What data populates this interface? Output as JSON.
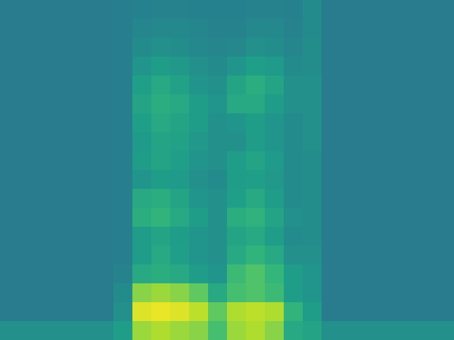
{
  "chart_data": {
    "type": "heatmap",
    "tick_labels": false,
    "cells": [
      [
        0.42,
        0.42,
        0.42,
        0.42,
        0.42,
        0.42,
        0.43,
        0.44,
        0.45,
        0.45,
        0.44,
        0.44,
        0.44,
        0.45,
        0.45,
        0.44,
        0.48,
        0.42,
        0.42,
        0.42,
        0.42,
        0.42,
        0.42,
        0.42
      ],
      [
        0.42,
        0.42,
        0.42,
        0.42,
        0.42,
        0.42,
        0.43,
        0.46,
        0.47,
        0.47,
        0.46,
        0.45,
        0.45,
        0.47,
        0.47,
        0.45,
        0.48,
        0.42,
        0.42,
        0.42,
        0.42,
        0.42,
        0.42,
        0.42
      ],
      [
        0.42,
        0.42,
        0.42,
        0.42,
        0.42,
        0.42,
        0.43,
        0.48,
        0.5,
        0.49,
        0.47,
        0.46,
        0.47,
        0.5,
        0.49,
        0.46,
        0.49,
        0.42,
        0.42,
        0.42,
        0.42,
        0.42,
        0.42,
        0.42
      ],
      [
        0.42,
        0.42,
        0.42,
        0.42,
        0.42,
        0.42,
        0.43,
        0.52,
        0.55,
        0.53,
        0.5,
        0.48,
        0.52,
        0.56,
        0.54,
        0.48,
        0.49,
        0.42,
        0.42,
        0.42,
        0.42,
        0.42,
        0.42,
        0.42
      ],
      [
        0.42,
        0.42,
        0.42,
        0.42,
        0.42,
        0.42,
        0.43,
        0.56,
        0.6,
        0.57,
        0.52,
        0.5,
        0.58,
        0.62,
        0.58,
        0.5,
        0.5,
        0.42,
        0.42,
        0.42,
        0.42,
        0.42,
        0.42,
        0.42
      ],
      [
        0.42,
        0.42,
        0.42,
        0.42,
        0.42,
        0.42,
        0.43,
        0.58,
        0.62,
        0.6,
        0.55,
        0.52,
        0.6,
        0.6,
        0.55,
        0.5,
        0.5,
        0.42,
        0.42,
        0.42,
        0.42,
        0.42,
        0.42,
        0.42
      ],
      [
        0.42,
        0.42,
        0.42,
        0.42,
        0.42,
        0.42,
        0.43,
        0.56,
        0.6,
        0.58,
        0.55,
        0.5,
        0.52,
        0.55,
        0.52,
        0.48,
        0.5,
        0.42,
        0.42,
        0.42,
        0.42,
        0.42,
        0.42,
        0.42
      ],
      [
        0.42,
        0.42,
        0.42,
        0.42,
        0.42,
        0.42,
        0.43,
        0.54,
        0.58,
        0.57,
        0.53,
        0.5,
        0.5,
        0.55,
        0.52,
        0.48,
        0.5,
        0.42,
        0.42,
        0.42,
        0.42,
        0.42,
        0.42,
        0.42
      ],
      [
        0.42,
        0.42,
        0.42,
        0.42,
        0.42,
        0.42,
        0.43,
        0.55,
        0.58,
        0.56,
        0.52,
        0.5,
        0.55,
        0.58,
        0.54,
        0.48,
        0.49,
        0.42,
        0.42,
        0.42,
        0.42,
        0.42,
        0.42,
        0.42
      ],
      [
        0.42,
        0.42,
        0.42,
        0.42,
        0.42,
        0.42,
        0.43,
        0.52,
        0.55,
        0.54,
        0.5,
        0.48,
        0.55,
        0.56,
        0.53,
        0.48,
        0.49,
        0.42,
        0.42,
        0.42,
        0.42,
        0.42,
        0.42,
        0.42
      ],
      [
        0.42,
        0.42,
        0.42,
        0.42,
        0.42,
        0.42,
        0.43,
        0.6,
        0.62,
        0.58,
        0.52,
        0.5,
        0.56,
        0.6,
        0.55,
        0.48,
        0.49,
        0.42,
        0.42,
        0.42,
        0.42,
        0.42,
        0.42,
        0.42
      ],
      [
        0.42,
        0.42,
        0.42,
        0.42,
        0.42,
        0.42,
        0.43,
        0.62,
        0.65,
        0.6,
        0.55,
        0.5,
        0.62,
        0.64,
        0.58,
        0.5,
        0.49,
        0.42,
        0.42,
        0.42,
        0.42,
        0.42,
        0.42,
        0.42
      ],
      [
        0.42,
        0.42,
        0.42,
        0.42,
        0.42,
        0.42,
        0.43,
        0.55,
        0.58,
        0.55,
        0.52,
        0.5,
        0.58,
        0.6,
        0.55,
        0.48,
        0.49,
        0.42,
        0.42,
        0.42,
        0.42,
        0.42,
        0.42,
        0.42
      ],
      [
        0.42,
        0.42,
        0.42,
        0.42,
        0.42,
        0.42,
        0.43,
        0.55,
        0.6,
        0.56,
        0.52,
        0.5,
        0.6,
        0.65,
        0.6,
        0.5,
        0.5,
        0.42,
        0.42,
        0.42,
        0.42,
        0.42,
        0.42,
        0.42
      ],
      [
        0.42,
        0.42,
        0.42,
        0.42,
        0.42,
        0.42,
        0.45,
        0.6,
        0.62,
        0.6,
        0.55,
        0.52,
        0.68,
        0.72,
        0.66,
        0.55,
        0.52,
        0.42,
        0.42,
        0.42,
        0.42,
        0.42,
        0.42,
        0.42
      ],
      [
        0.42,
        0.42,
        0.42,
        0.42,
        0.42,
        0.42,
        0.48,
        0.82,
        0.85,
        0.82,
        0.75,
        0.6,
        0.7,
        0.72,
        0.68,
        0.55,
        0.52,
        0.42,
        0.42,
        0.42,
        0.42,
        0.42,
        0.42,
        0.42
      ],
      [
        0.42,
        0.42,
        0.42,
        0.42,
        0.42,
        0.42,
        0.5,
        0.95,
        0.97,
        0.95,
        0.9,
        0.75,
        0.88,
        0.9,
        0.88,
        0.65,
        0.55,
        0.42,
        0.42,
        0.42,
        0.42,
        0.42,
        0.42,
        0.42
      ],
      [
        0.5,
        0.5,
        0.5,
        0.5,
        0.5,
        0.5,
        0.55,
        0.85,
        0.88,
        0.85,
        0.82,
        0.7,
        0.85,
        0.88,
        0.82,
        0.6,
        0.58,
        0.5,
        0.5,
        0.5,
        0.5,
        0.5,
        0.5,
        0.5
      ]
    ]
  }
}
